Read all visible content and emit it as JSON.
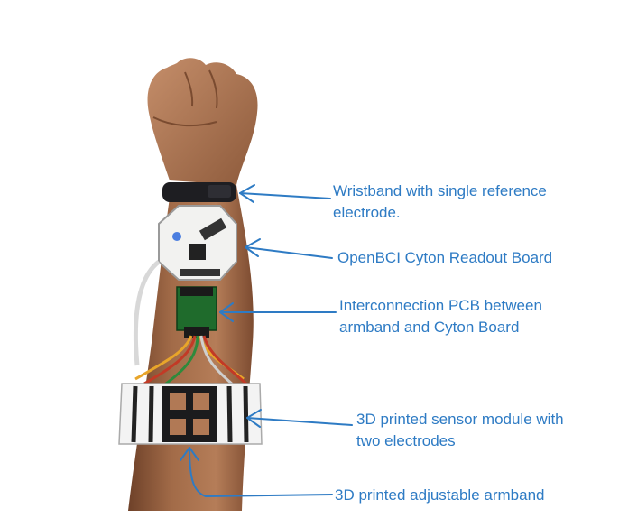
{
  "annotations": {
    "wristband": {
      "line1": "Wristband with single reference",
      "line2": "electrode."
    },
    "cyton": {
      "line1": "OpenBCI Cyton Readout Board"
    },
    "pcb": {
      "line1": "Interconnection PCB between",
      "line2": "armband and Cyton Board"
    },
    "sensor": {
      "line1": "3D printed sensor module with",
      "line2": "two electrodes"
    },
    "armband": {
      "line1": "3D printed adjustable armband"
    }
  },
  "colors": {
    "annotation": "#2e7bc4",
    "skin": "#a8714e",
    "skin_shadow": "#7a4b30"
  }
}
